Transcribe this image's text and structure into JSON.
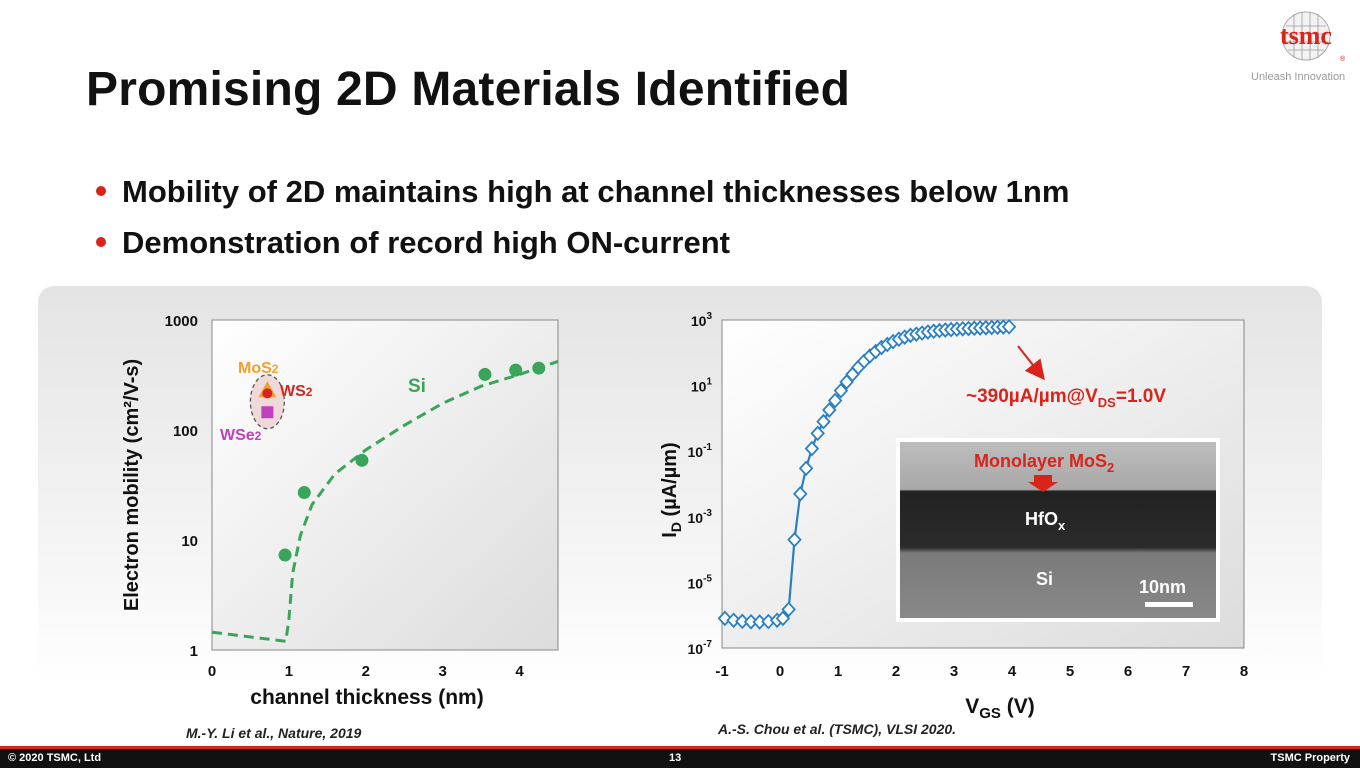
{
  "slide": {
    "title": "Promising 2D Materials Identified",
    "logo_text": "tsmc",
    "tagline": "Unleash Innovation",
    "bullets": [
      "Mobility of 2D maintains high at channel thicknesses below 1nm",
      "Demonstration of record high ON-current"
    ],
    "citation_left": "M.-Y. Li et al., Nature, 2019",
    "citation_right": "A.-S. Chou et al. (TSMC), VLSI 2020.",
    "footer": {
      "copyright": "© 2020 TSMC, Ltd",
      "page": "13",
      "property": "TSMC Property"
    },
    "colors": {
      "accent_red": "#d9241c",
      "si_green": "#3aa55a",
      "idvg_blue": "#2a7fc2",
      "mos2_orange": "#f0a030",
      "ws2_red": "#d9241c",
      "wse2_purple": "#c040c0"
    }
  },
  "chart_data": [
    {
      "type": "scatter",
      "scale_y": "log",
      "xlabel": "channel thickness (nm)",
      "ylabel": "Electron mobility (cm²/V-s)",
      "xlim": [
        0,
        4.5
      ],
      "ylim": [
        1,
        1000
      ],
      "x_ticks": [
        "0",
        "1",
        "2",
        "3",
        "4"
      ],
      "y_ticks": [
        "1",
        "10",
        "100",
        "1000"
      ],
      "grid": false,
      "series": [
        {
          "name": "Si",
          "kind": "points",
          "color": "#3aa55a",
          "points": [
            [
              0.95,
              7.3
            ],
            [
              1.2,
              27
            ],
            [
              1.95,
              53
            ],
            [
              3.55,
              320
            ],
            [
              3.95,
              350
            ],
            [
              4.25,
              365
            ]
          ]
        },
        {
          "name": "",
          "kind": "dashed-fit",
          "color": "#3aa55a",
          "points": [
            [
              0,
              1.45
            ],
            [
              0.96,
              1.2
            ],
            [
              1.0,
              1.9
            ],
            [
              1.05,
              5
            ],
            [
              1.15,
              11
            ],
            [
              1.3,
              21
            ],
            [
              1.6,
              40
            ],
            [
              2.0,
              66
            ],
            [
              2.5,
              110
            ],
            [
              3.0,
              175
            ],
            [
              3.5,
              250
            ],
            [
              4.0,
              320
            ],
            [
              4.5,
              420
            ]
          ]
        },
        {
          "name": "MoS2",
          "label_html": "MoS<tspan font-size=\"12\">2</tspan>",
          "kind": "triangle",
          "color": "#f0a030",
          "points": [
            [
              0.72,
              225
            ]
          ]
        },
        {
          "name": "WS2",
          "kind": "circle",
          "color": "#d9241c",
          "points": [
            [
              0.72,
              215
            ]
          ]
        },
        {
          "name": "WSe2",
          "kind": "square",
          "color": "#c040c0",
          "points": [
            [
              0.72,
              145
            ]
          ]
        }
      ],
      "labels": {
        "si": "Si",
        "mos2": "MoS",
        "ws2": "WS",
        "wse2": "WSe",
        "sub": "2"
      }
    },
    {
      "type": "scatter",
      "scale_y": "log",
      "xlabel": "VGS (V)",
      "ylabel": "ID (µA/µm)",
      "xlim": [
        -1,
        8
      ],
      "ylim": [
        1e-07,
        1000
      ],
      "x_ticks": [
        "-1",
        "0",
        "1",
        "2",
        "3",
        "4",
        "5",
        "6",
        "7",
        "8"
      ],
      "y_ticks": [
        "10-7",
        "10-5",
        "10-3",
        "10-1",
        "101",
        "103"
      ],
      "grid": false,
      "series": [
        {
          "name": "",
          "kind": "line-diamond",
          "color": "#2a7fc2",
          "x": [
            -0.95,
            -0.8,
            -0.65,
            -0.5,
            -0.35,
            -0.2,
            -0.05,
            0.05,
            0.15,
            0.25,
            0.35,
            0.45,
            0.55,
            0.65,
            0.75,
            0.85,
            0.95,
            1.05,
            1.15,
            1.25,
            1.35,
            1.45,
            1.55,
            1.65,
            1.75,
            1.85,
            1.95,
            2.05,
            2.15,
            2.25,
            2.35,
            2.45,
            2.55,
            2.65,
            2.75,
            2.85,
            2.95,
            3.05,
            3.15,
            3.25,
            3.35,
            3.45,
            3.55,
            3.65,
            3.75,
            3.85,
            3.95
          ],
          "y": [
            8e-07,
            7e-07,
            6.5e-07,
            6.3e-07,
            6.2e-07,
            6.4e-07,
            7e-07,
            8e-07,
            1.5e-06,
            0.0002,
            0.005,
            0.03,
            0.12,
            0.35,
            0.8,
            1.8,
            3.5,
            7,
            13,
            22,
            36,
            55,
            80,
            110,
            145,
            180,
            220,
            260,
            300,
            340,
            370,
            400,
            430,
            455,
            475,
            495,
            510,
            525,
            540,
            550,
            560,
            570,
            580,
            590,
            600,
            610,
            620
          ]
        }
      ],
      "annotation": {
        "value": "~390µA/µm@V",
        "sub": "DS",
        "tail": "=1.0V"
      },
      "inset": {
        "top_label": "Monolayer MoS",
        "top_label_sub": "2",
        "oxide_label": "HfO",
        "oxide_sub": "x",
        "substrate_label": "Si",
        "scale_bar": "10nm"
      }
    }
  ]
}
